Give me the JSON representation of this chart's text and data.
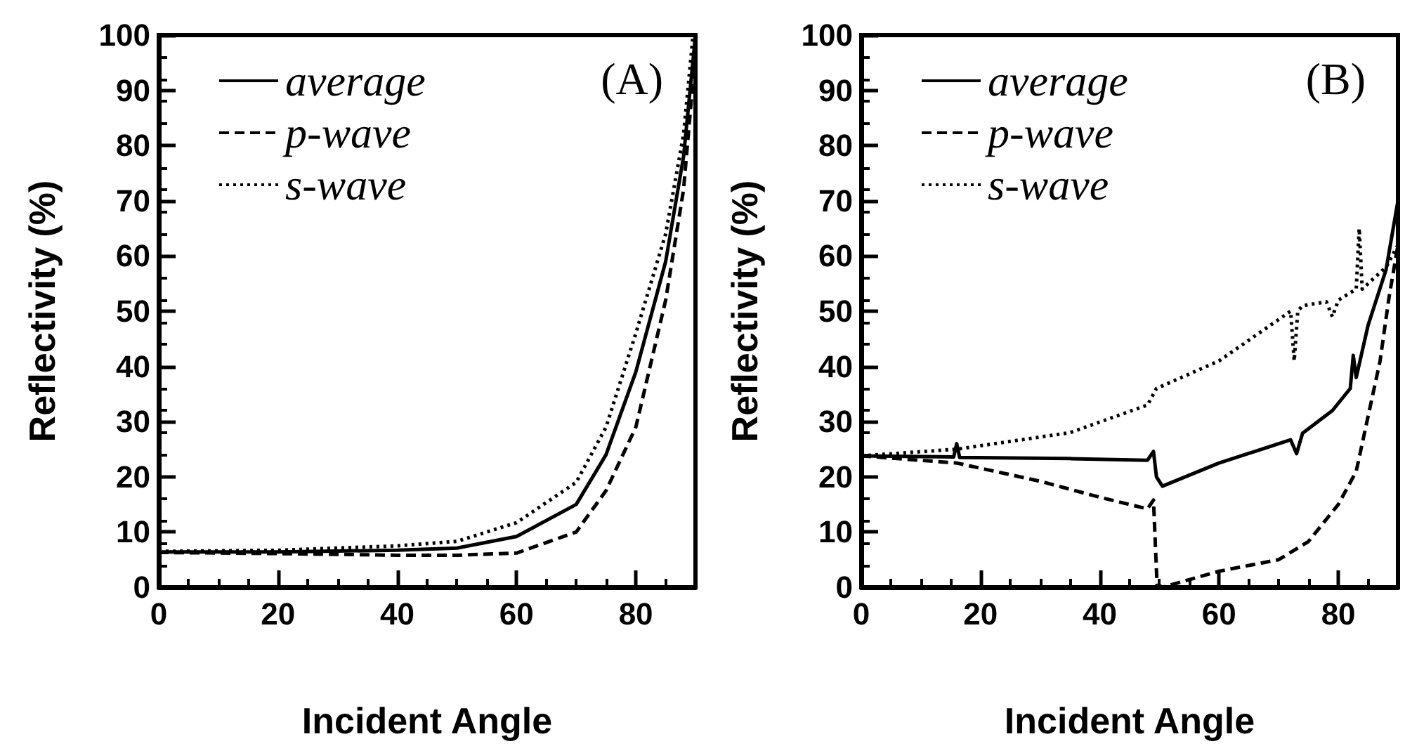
{
  "chart_data": [
    {
      "type": "line",
      "xlabel": "Incident Angle",
      "ylabel": "Reflectivity (%)",
      "annotations": [
        "(A)"
      ],
      "xlim": [
        0,
        90
      ],
      "xticks": [
        0,
        20,
        40,
        60,
        80
      ],
      "ylim": [
        0,
        100
      ],
      "yticks": [
        0,
        10,
        20,
        30,
        40,
        50,
        60,
        70,
        80,
        90,
        100
      ],
      "grid": false,
      "legend": "top left",
      "marker": "none",
      "series": [
        {
          "name": "average",
          "color": "#000000",
          "line_style": "solid",
          "x": [
            0,
            20,
            40,
            50,
            60,
            70,
            75,
            80,
            85,
            88,
            90
          ],
          "values": [
            6.4,
            6.4,
            6.7,
            7.1,
            9.2,
            15,
            24,
            39,
            59,
            78,
            100
          ]
        },
        {
          "name": "p-wave",
          "color": "#000000",
          "line_style": "dashed",
          "x": [
            0,
            20,
            40,
            50,
            60,
            70,
            75,
            80,
            85,
            88,
            90
          ],
          "values": [
            6.3,
            6.1,
            5.8,
            5.8,
            6.2,
            10,
            17.5,
            29,
            52,
            72,
            97
          ]
        },
        {
          "name": "s-wave",
          "color": "#000000",
          "line_style": "dotted",
          "x": [
            0,
            20,
            40,
            50,
            60,
            70,
            75,
            80,
            85,
            88,
            89.6
          ],
          "values": [
            6.5,
            6.7,
            7.5,
            8.3,
            11.7,
            19,
            29,
            46,
            64,
            82,
            100
          ]
        }
      ]
    },
    {
      "type": "line",
      "xlabel": "Incident Angle",
      "ylabel": "Reflectivity (%)",
      "annotations": [
        "(B)"
      ],
      "xlim": [
        0,
        90
      ],
      "xticks": [
        0,
        20,
        40,
        60,
        80
      ],
      "ylim": [
        0,
        100
      ],
      "yticks": [
        0,
        10,
        20,
        30,
        40,
        50,
        60,
        70,
        80,
        90,
        100
      ],
      "grid": false,
      "legend": "top left",
      "marker": "none",
      "series": [
        {
          "name": "average",
          "color": "#000000",
          "line_style": "solid",
          "x": [
            0,
            15.5,
            16,
            16.5,
            35,
            48,
            49,
            49.5,
            50.5,
            60,
            72,
            73,
            74,
            79,
            82,
            82.5,
            83,
            85,
            88,
            90
          ],
          "values": [
            23.8,
            23.6,
            26,
            23.5,
            23.3,
            23,
            24.6,
            20,
            18.3,
            22.5,
            26.7,
            24.2,
            27.9,
            32,
            36,
            42,
            38,
            47.5,
            57.5,
            70
          ]
        },
        {
          "name": "p-wave",
          "color": "#000000",
          "line_style": "dashed",
          "x": [
            0,
            16,
            30,
            40,
            48,
            49,
            49.6,
            50.5,
            60,
            70,
            75,
            80,
            83,
            85,
            87,
            88.5,
            90
          ],
          "values": [
            23.8,
            22.5,
            19.2,
            16.3,
            14.2,
            15.8,
            0.5,
            0,
            2.9,
            5,
            8.3,
            15,
            21,
            31,
            41,
            52.5,
            62
          ]
        },
        {
          "name": "s-wave",
          "color": "#000000",
          "line_style": "dotted",
          "x": [
            0,
            16,
            35,
            48,
            49.5,
            60,
            72,
            72.6,
            73.2,
            74,
            78,
            79,
            80,
            83,
            83.5,
            84,
            88,
            90
          ],
          "values": [
            23.8,
            25,
            28,
            33,
            36,
            41,
            50,
            41,
            50,
            51,
            51.7,
            49,
            52,
            54,
            65,
            54,
            58,
            62
          ]
        }
      ]
    }
  ]
}
